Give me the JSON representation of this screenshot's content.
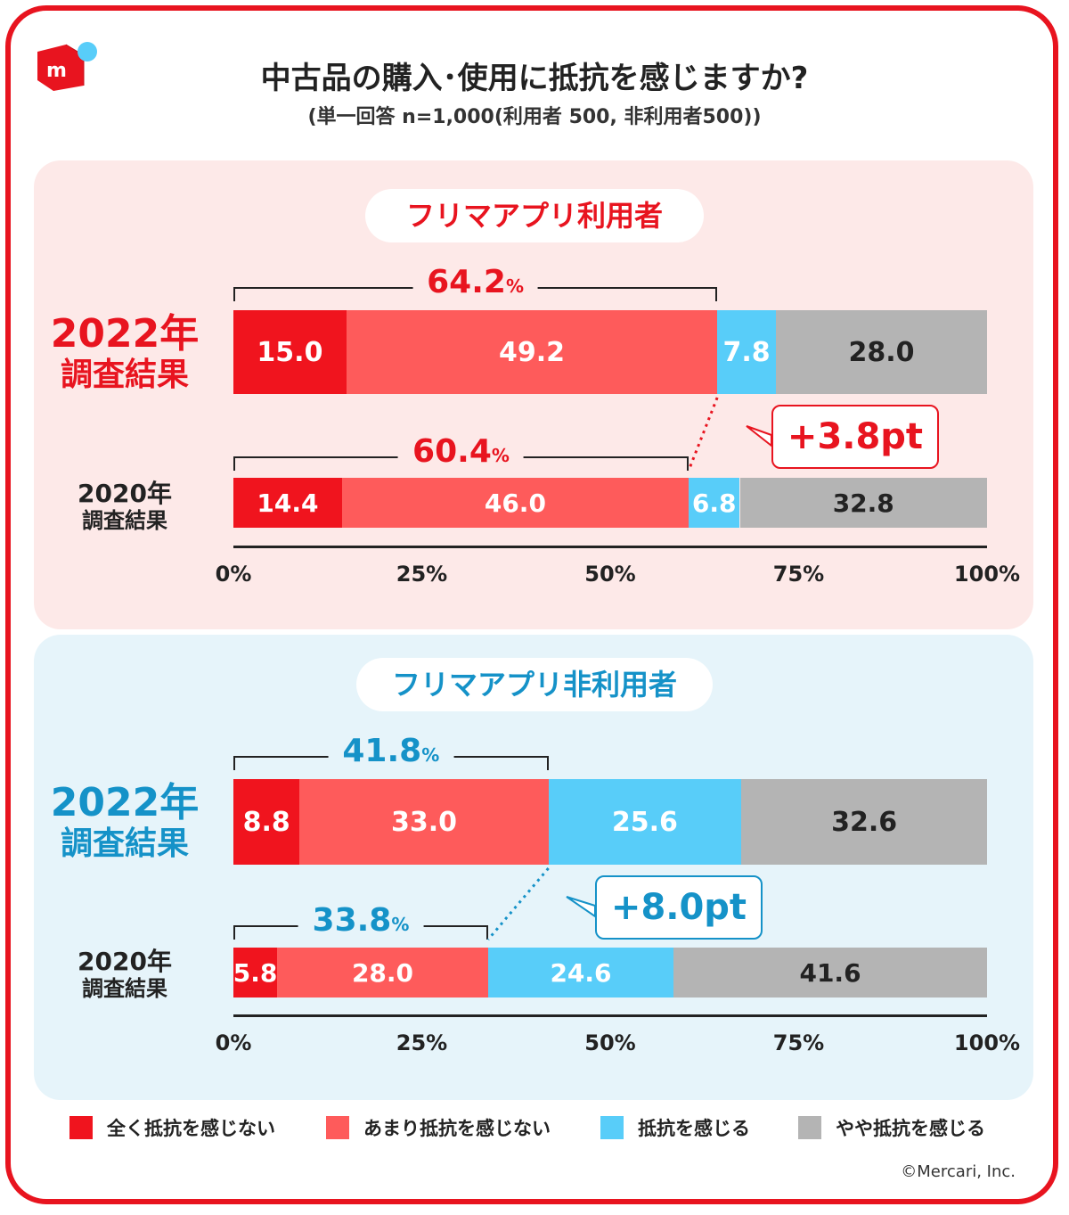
{
  "title": "中古品の購入･使用に抵抗を感じますか?",
  "subtitle": "(単一回答 n=1,000(利用者 500, 非利用者500))",
  "copyright": "©Mercari, Inc.",
  "colors": {
    "strong_red": "#f0141e",
    "light_red": "#fe5b5b",
    "blue": "#58cdf9",
    "gray": "#b4b4b4",
    "brand_red": "#e8141f",
    "teal": "#1592c8",
    "users_bg": "#fde9e8",
    "nonusers_bg": "#e6f4fa"
  },
  "legend": [
    {
      "label": "全く抵抗を感じない",
      "color": "#f0141e"
    },
    {
      "label": "あまり抵抗を感じない",
      "color": "#fe5b5b"
    },
    {
      "label": "抵抗を感じる",
      "color": "#58cdf9"
    },
    {
      "label": "やや抵抗を感じる",
      "color": "#b4b4b4"
    }
  ],
  "axis_ticks": [
    "0%",
    "25%",
    "50%",
    "75%",
    "100%"
  ],
  "chart_data": [
    {
      "type": "bar",
      "orientation": "horizontal",
      "stacked": true,
      "title": "フリマアプリ利用者",
      "categories": [
        "2022年 調査結果",
        "2020年 調査結果"
      ],
      "category_labels": [
        {
          "year": "2022年",
          "sub": "調査結果"
        },
        {
          "year": "2020年",
          "sub": "調査結果"
        }
      ],
      "series": [
        {
          "name": "全く抵抗を感じない",
          "values": [
            15.0,
            14.4
          ]
        },
        {
          "name": "あまり抵抗を感じない",
          "values": [
            49.2,
            46.0
          ]
        },
        {
          "name": "抵抗を感じる",
          "values": [
            7.8,
            6.8
          ]
        },
        {
          "name": "やや抵抗を感じる",
          "values": [
            28.0,
            32.8
          ]
        }
      ],
      "value_labels": [
        [
          "15.0",
          "49.2",
          "7.8",
          "28.0"
        ],
        [
          "14.4",
          "46.0",
          "6.8",
          "32.8"
        ]
      ],
      "bracket_totals": [
        {
          "num": "64.2",
          "unit": "%",
          "value": 64.2
        },
        {
          "num": "60.4",
          "unit": "%",
          "value": 60.4
        }
      ],
      "change_callout": "+3.8pt",
      "xlim": [
        0,
        100
      ]
    },
    {
      "type": "bar",
      "orientation": "horizontal",
      "stacked": true,
      "title": "フリマアプリ非利用者",
      "categories": [
        "2022年 調査結果",
        "2020年 調査結果"
      ],
      "category_labels": [
        {
          "year": "2022年",
          "sub": "調査結果"
        },
        {
          "year": "2020年",
          "sub": "調査結果"
        }
      ],
      "series": [
        {
          "name": "全く抵抗を感じない",
          "values": [
            8.8,
            5.8
          ]
        },
        {
          "name": "あまり抵抗を感じない",
          "values": [
            33.0,
            28.0
          ]
        },
        {
          "name": "抵抗を感じる",
          "values": [
            25.6,
            24.6
          ]
        },
        {
          "name": "やや抵抗を感じる",
          "values": [
            32.6,
            41.6
          ]
        }
      ],
      "value_labels": [
        [
          "8.8",
          "33.0",
          "25.6",
          "32.6"
        ],
        [
          "5.8",
          "28.0",
          "24.6",
          "41.6"
        ]
      ],
      "bracket_totals": [
        {
          "num": "41.8",
          "unit": "%",
          "value": 41.8
        },
        {
          "num": "33.8",
          "unit": "%",
          "value": 33.8
        }
      ],
      "change_callout": "+8.0pt",
      "xlim": [
        0,
        100
      ]
    }
  ]
}
